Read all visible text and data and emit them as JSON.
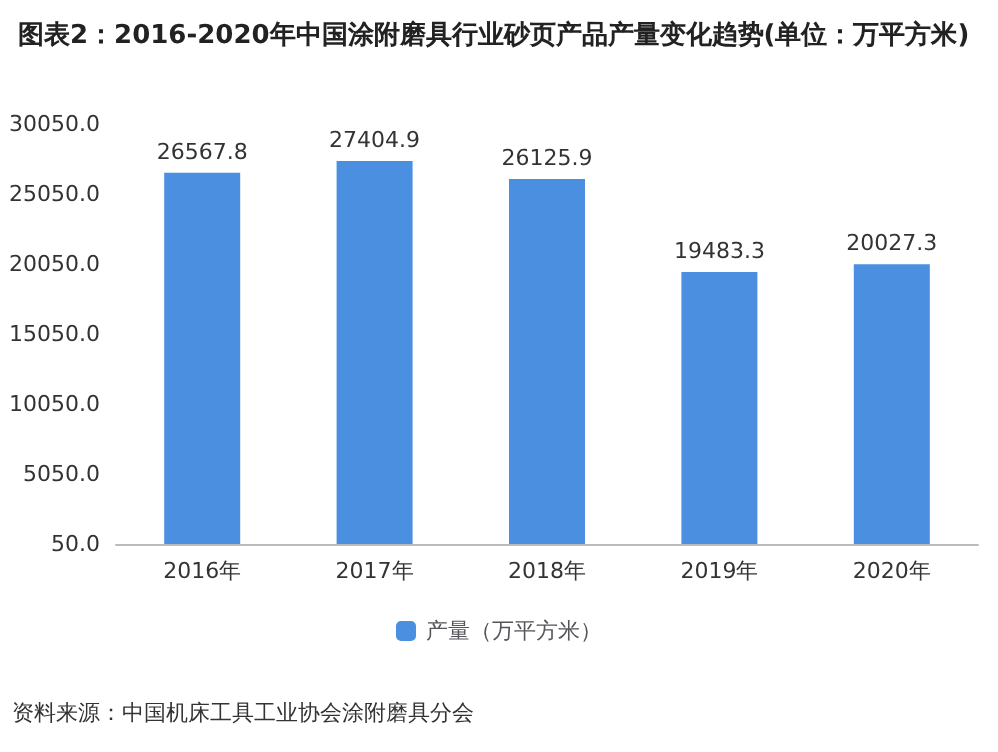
{
  "chart_data": {
    "type": "bar",
    "title": "图表2：2016-2020年中国涂附磨具行业砂页产品产量变化趋势(单位：万平方米)",
    "categories": [
      "2016年",
      "2017年",
      "2018年",
      "2019年",
      "2020年"
    ],
    "series": [
      {
        "name": "产量（万平方米）",
        "color": "#4a8fe0",
        "values": [
          26567.8,
          27404.9,
          26125.9,
          19483.3,
          20027.3
        ]
      }
    ],
    "ylim": [
      50,
      30050
    ],
    "yticks": [
      {
        "value": 50,
        "label": "50.0"
      },
      {
        "value": 5050,
        "label": "5050.0"
      },
      {
        "value": 10050,
        "label": "10050.0"
      },
      {
        "value": 15050,
        "label": "15050.0"
      },
      {
        "value": 20050,
        "label": "20050.0"
      },
      {
        "value": 25050,
        "label": "25050.0"
      },
      {
        "value": 30050,
        "label": "30050.0"
      }
    ],
    "data_labels": true,
    "grid": false,
    "legend": "bottom",
    "annotations": [
      "资料来源：中国机床工具工业协会涂附磨具分会"
    ]
  }
}
